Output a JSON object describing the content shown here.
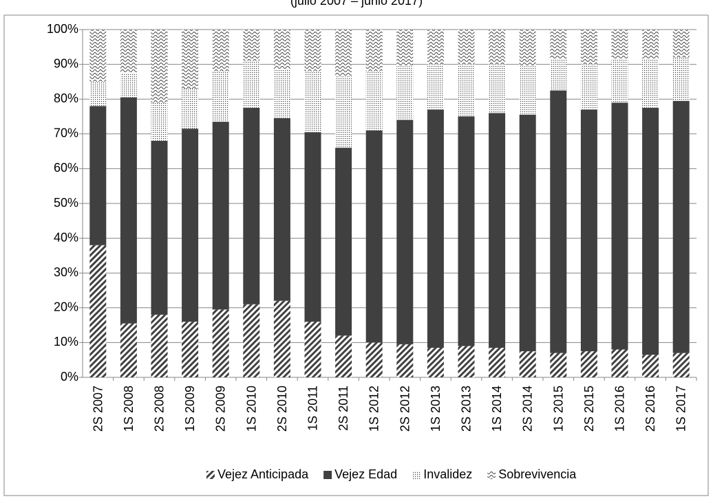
{
  "chart_data": {
    "type": "stacked_bar",
    "subtitle": "(julio 2007 – junio 2017)",
    "categories": [
      "2S 2007",
      "1S 2008",
      "2S 2008",
      "1S 2009",
      "2S 2009",
      "1S 2010",
      "2S 2010",
      "1S 2011",
      "2S 2011",
      "1S 2012",
      "2S 2012",
      "1S 2013",
      "2S 2013",
      "1S 2014",
      "2S 2014",
      "1S 2015",
      "2S 2015",
      "1S 2016",
      "2S 2016",
      "1S 2017"
    ],
    "series": [
      {
        "name": "Vejez Anticipada",
        "color": "#404040",
        "pattern": "diagonal",
        "values": [
          38,
          15.5,
          18,
          16,
          19.5,
          21,
          22,
          16,
          12,
          10,
          9.5,
          8.5,
          9,
          8.5,
          7.5,
          7,
          7.5,
          8,
          6.5,
          7
        ]
      },
      {
        "name": "Vejez Edad",
        "color": "#404040",
        "pattern": "solid",
        "values": [
          40,
          65,
          50,
          55.5,
          54,
          56.5,
          52.5,
          54.5,
          54,
          61,
          64.5,
          68.5,
          66,
          67.5,
          68,
          75.5,
          69.5,
          71,
          71,
          72.5
        ]
      },
      {
        "name": "Invalidez",
        "color": "#404040",
        "pattern": "dots",
        "values": [
          7,
          7,
          11,
          11.5,
          14.5,
          13.5,
          14,
          17.5,
          20.5,
          17,
          15.5,
          13,
          15,
          14,
          14,
          9,
          13,
          12.5,
          14,
          12.5
        ]
      },
      {
        "name": "Sobrevivencia",
        "color": "#404040",
        "pattern": "waves",
        "values": [
          15,
          12.5,
          21,
          17,
          12,
          9,
          11.5,
          12,
          13.5,
          12,
          10.5,
          10,
          10,
          10,
          10.5,
          8.5,
          10,
          8.5,
          8.5,
          8
        ]
      }
    ],
    "ylim": [
      0,
      100
    ],
    "yticks": [
      {
        "value": 0,
        "label": "0%"
      },
      {
        "value": 10,
        "label": "10%"
      },
      {
        "value": 20,
        "label": "20%"
      },
      {
        "value": 30,
        "label": "30%"
      },
      {
        "value": 40,
        "label": "40%"
      },
      {
        "value": 50,
        "label": "50%"
      },
      {
        "value": 60,
        "label": "60%"
      },
      {
        "value": 70,
        "label": "70%"
      },
      {
        "value": 80,
        "label": "80%"
      },
      {
        "value": 90,
        "label": "90%"
      },
      {
        "value": 100,
        "label": "100%"
      }
    ],
    "grid": true,
    "legend": "bottom"
  }
}
